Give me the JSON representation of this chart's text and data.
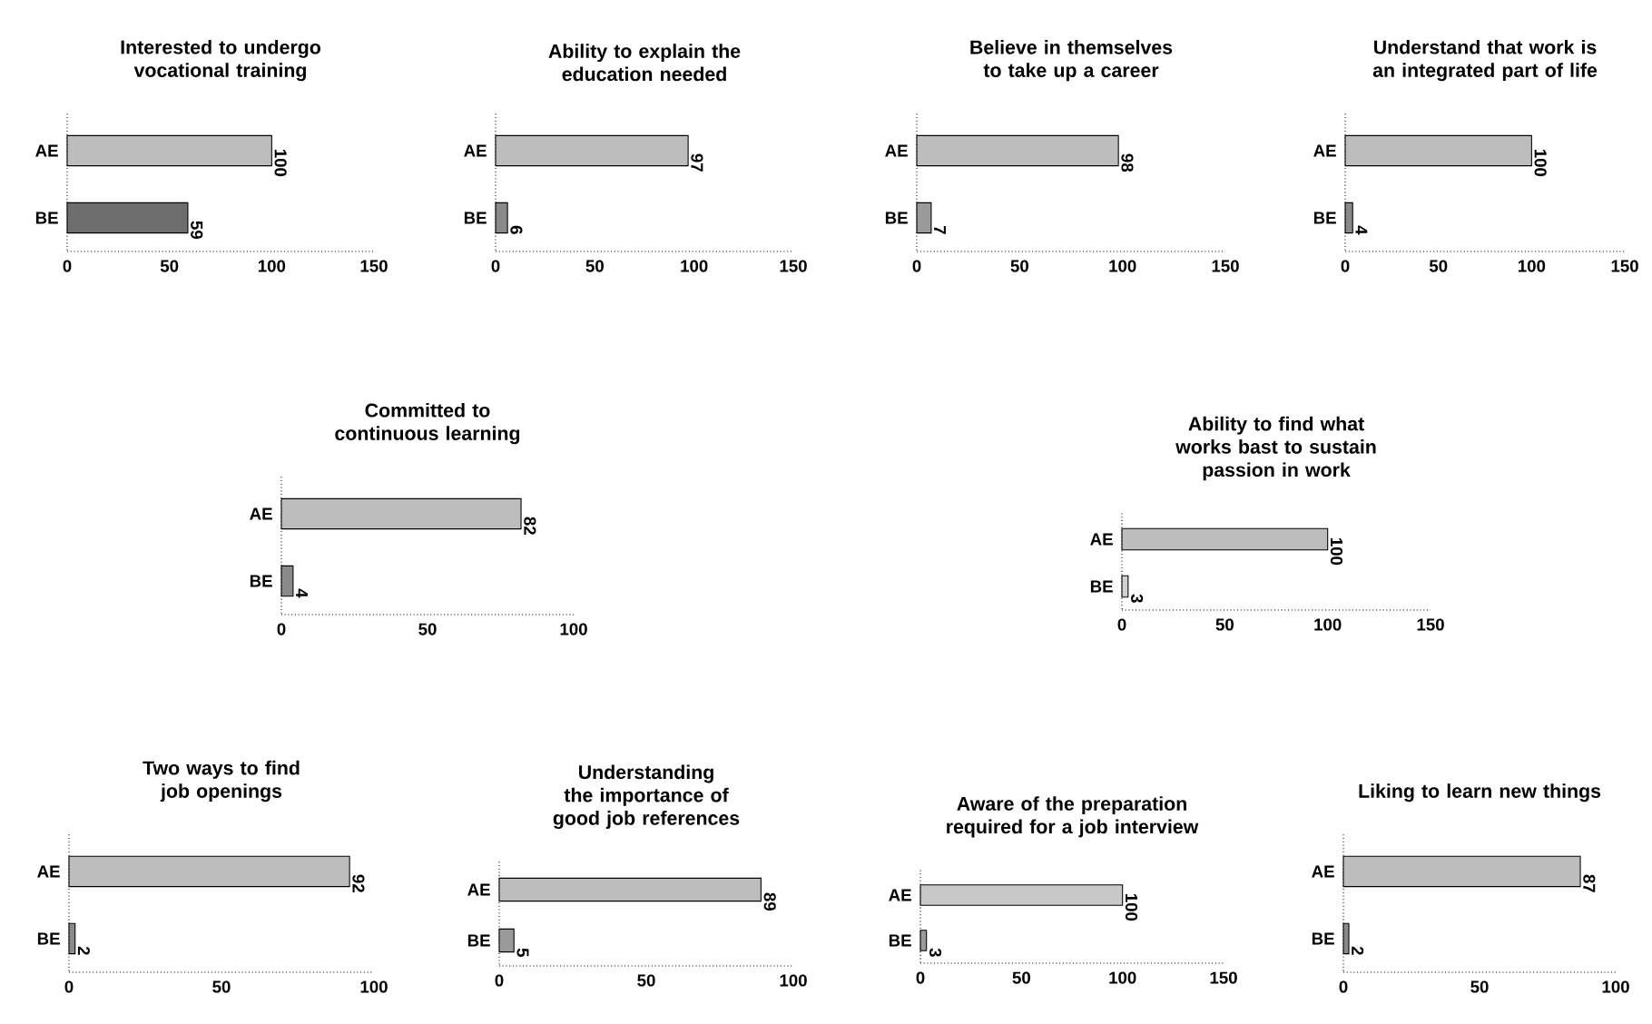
{
  "chart_data": [
    {
      "type": "bar",
      "orientation": "horizontal",
      "title": "Interested to undergo vocational training",
      "categories": [
        "AE",
        "BE"
      ],
      "values": [
        100,
        59
      ],
      "colors": [
        "#bdbdbd",
        "#6e6e6e"
      ],
      "xlim": [
        0,
        150
      ],
      "xticks": [
        0,
        50,
        100,
        150
      ],
      "data_labels": true
    },
    {
      "type": "bar",
      "orientation": "horizontal",
      "title": "Ability to explain the education needed",
      "categories": [
        "AE",
        "BE"
      ],
      "values": [
        97,
        6
      ],
      "colors": [
        "#bdbdbd",
        "#8a8a8a"
      ],
      "xlim": [
        0,
        150
      ],
      "xticks": [
        0,
        50,
        100,
        150
      ],
      "data_labels": true
    },
    {
      "type": "bar",
      "orientation": "horizontal",
      "title": "Believe in themselves to take up a career",
      "categories": [
        "AE",
        "BE"
      ],
      "values": [
        98,
        7
      ],
      "colors": [
        "#bdbdbd",
        "#9a9a9a"
      ],
      "xlim": [
        0,
        150
      ],
      "xticks": [
        0,
        50,
        100,
        150
      ],
      "data_labels": true
    },
    {
      "type": "bar",
      "orientation": "horizontal",
      "title": "Understand that work is an integrated part of life",
      "categories": [
        "AE",
        "BE"
      ],
      "values": [
        100,
        4
      ],
      "colors": [
        "#bdbdbd",
        "#8a8a8a"
      ],
      "xlim": [
        0,
        150
      ],
      "xticks": [
        0,
        50,
        100,
        150
      ],
      "data_labels": true
    },
    {
      "type": "bar",
      "orientation": "horizontal",
      "title": "Committed to continuous learning",
      "categories": [
        "AE",
        "BE"
      ],
      "values": [
        82,
        4
      ],
      "colors": [
        "#bdbdbd",
        "#8a8a8a"
      ],
      "xlim": [
        0,
        100
      ],
      "xticks": [
        0,
        50,
        100
      ],
      "data_labels": true
    },
    {
      "type": "bar",
      "orientation": "horizontal",
      "title": "Ability to find what works bast to sustain passion in work",
      "categories": [
        "AE",
        "BE"
      ],
      "values": [
        100,
        3
      ],
      "colors": [
        "#bdbdbd",
        "#d0d0d0"
      ],
      "xlim": [
        0,
        150
      ],
      "xticks": [
        0,
        50,
        100,
        150
      ],
      "data_labels": true
    },
    {
      "type": "bar",
      "orientation": "horizontal",
      "title": "Two ways to find job openings",
      "categories": [
        "AE",
        "BE"
      ],
      "values": [
        92,
        2
      ],
      "colors": [
        "#bdbdbd",
        "#8a8a8a"
      ],
      "xlim": [
        0,
        100
      ],
      "xticks": [
        0,
        50,
        100
      ],
      "data_labels": true
    },
    {
      "type": "bar",
      "orientation": "horizontal",
      "title": "Understanding the importance of good job references",
      "categories": [
        "AE",
        "BE"
      ],
      "values": [
        89,
        5
      ],
      "colors": [
        "#bdbdbd",
        "#9a9a9a"
      ],
      "xlim": [
        0,
        100
      ],
      "xticks": [
        0,
        50,
        100
      ],
      "data_labels": true
    },
    {
      "type": "bar",
      "orientation": "horizontal",
      "title": "Aware of the preparation required for a job interview",
      "categories": [
        "AE",
        "BE"
      ],
      "values": [
        100,
        3
      ],
      "colors": [
        "#c8c8c8",
        "#9a9a9a"
      ],
      "xlim": [
        0,
        150
      ],
      "xticks": [
        0,
        50,
        100,
        150
      ],
      "data_labels": true
    },
    {
      "type": "bar",
      "orientation": "horizontal",
      "title": "Liking to learn new things",
      "categories": [
        "AE",
        "BE"
      ],
      "values": [
        87,
        2
      ],
      "colors": [
        "#bdbdbd",
        "#8a8a8a"
      ],
      "xlim": [
        0,
        100
      ],
      "xticks": [
        0,
        50,
        100
      ],
      "data_labels": true
    }
  ]
}
